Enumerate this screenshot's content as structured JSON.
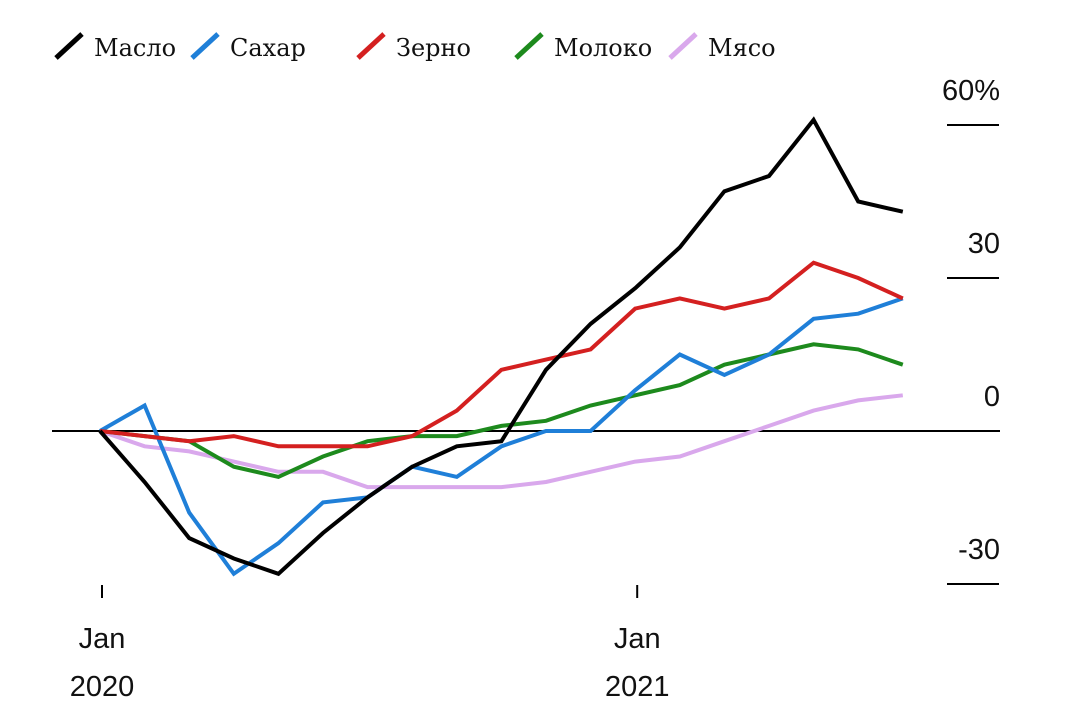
{
  "chart_data": {
    "type": "line",
    "title": "",
    "xlabel": "",
    "ylabel": "",
    "ylim": [
      -30,
      60
    ],
    "y_ticks": [
      {
        "value": 60,
        "label": "60%"
      },
      {
        "value": 30,
        "label": "30"
      },
      {
        "value": 0,
        "label": "0"
      },
      {
        "value": -30,
        "label": "-30"
      }
    ],
    "x_ticks": [
      {
        "index": 0,
        "month": "Jan",
        "year": "2020"
      },
      {
        "index": 12,
        "month": "Jan",
        "year": "2021"
      }
    ],
    "x": [
      "2020-01",
      "2020-02",
      "2020-03",
      "2020-04",
      "2020-05",
      "2020-06",
      "2020-07",
      "2020-08",
      "2020-09",
      "2020-10",
      "2020-11",
      "2020-12",
      "2021-01",
      "2021-02",
      "2021-03",
      "2021-04",
      "2021-05",
      "2021-06",
      "2021-07"
    ],
    "series": [
      {
        "name": "Масло",
        "color": "#000000",
        "values": [
          0,
          -10,
          -21,
          -25,
          -28,
          -20,
          -13,
          -7,
          -3,
          -2,
          12,
          21,
          28,
          36,
          47,
          50,
          61,
          45,
          43
        ]
      },
      {
        "name": "Сахар",
        "color": "#1f7fd8",
        "values": [
          0,
          5,
          -16,
          -28,
          -22,
          -14,
          -13,
          -7,
          -9,
          -3,
          0,
          0,
          8,
          15,
          11,
          15,
          22,
          23,
          26
        ]
      },
      {
        "name": "Зерно",
        "color": "#d42020",
        "values": [
          0,
          -1,
          -2,
          -1,
          -3,
          -3,
          -3,
          -1,
          4,
          12,
          14,
          16,
          24,
          26,
          24,
          26,
          33,
          30,
          26
        ]
      },
      {
        "name": "Молоко",
        "color": "#1d8a1d",
        "values": [
          0,
          -1,
          -2,
          -7,
          -9,
          -5,
          -2,
          -1,
          -1,
          1,
          2,
          5,
          7,
          9,
          13,
          15,
          17,
          16,
          13
        ]
      },
      {
        "name": "Мясо",
        "color": "#d9a8ec",
        "values": [
          0,
          -3,
          -4,
          -6,
          -8,
          -8,
          -11,
          -11,
          -11,
          -11,
          -10,
          -8,
          -6,
          -5,
          -2,
          1,
          4,
          6,
          7
        ]
      }
    ]
  }
}
